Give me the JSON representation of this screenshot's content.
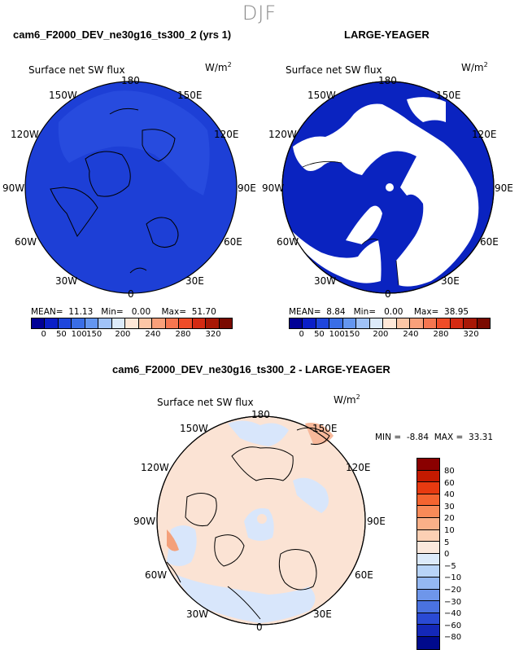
{
  "season": "DJF",
  "panels": [
    {
      "title": "cam6_F2000_DEV_ne30g16_ts300_2 (yrs 1)",
      "field": "Surface net SW flux",
      "units_base": "W/m",
      "units_exp": "2",
      "mean_label": "MEAN=",
      "mean": "11.13",
      "min_label": "Min=",
      "min": "0.00",
      "max_label": "Max=",
      "max": "51.70",
      "lon_labels": [
        "180",
        "150E",
        "120E",
        "90E",
        "60E",
        "30E",
        "0",
        "30W",
        "60W",
        "90W",
        "120W",
        "150W"
      ]
    },
    {
      "title": "LARGE-YEAGER",
      "field": "Surface net SW flux",
      "units_base": "W/m",
      "units_exp": "2",
      "mean_label": "MEAN=",
      "mean": "8.84",
      "min_label": "Min=",
      "min": "0.00",
      "max_label": "Max=",
      "max": "38.95",
      "lon_labels": [
        "180",
        "150E",
        "120E",
        "90E",
        "60E",
        "30E",
        "0",
        "30W",
        "60W",
        "90W",
        "120W",
        "150W"
      ]
    }
  ],
  "abs_colorbar": {
    "colors": [
      "#000096",
      "#0a1fc8",
      "#1e46dc",
      "#3a6ee6",
      "#6496f0",
      "#a0c2f8",
      "#dceafa",
      "#ffe8d8",
      "#fcc6a6",
      "#f9a07a",
      "#f57650",
      "#ef4c28",
      "#d42a12",
      "#a81806",
      "#7a0a00"
    ],
    "labels": [
      "0",
      "50",
      "100",
      "150",
      "200",
      "240",
      "280",
      "320"
    ]
  },
  "diff_panel": {
    "title": "cam6_F2000_DEV_ne30g16_ts300_2 - LARGE-YEAGER",
    "field": "Surface net SW flux",
    "units_base": "W/m",
    "units_exp": "2",
    "min_label": "MIN =",
    "min": "-8.84",
    "max_label": "MAX =",
    "max": "33.31",
    "lon_labels": [
      "180",
      "150E",
      "120E",
      "90E",
      "60E",
      "30E",
      "0",
      "30W",
      "60W",
      "90W",
      "120W",
      "150W"
    ]
  },
  "diff_colorbar": {
    "colors": [
      "#8a0000",
      "#c41a00",
      "#e83a10",
      "#f46430",
      "#f88a58",
      "#fab088",
      "#fcd0b4",
      "#fbe8dc",
      "#dceafa",
      "#b8d4f8",
      "#94b8f2",
      "#6e96ea",
      "#4a72e0",
      "#2a4ad4",
      "#1428b8",
      "#000a8c"
    ],
    "labels": [
      "80",
      "60",
      "40",
      "30",
      "20",
      "10",
      "5",
      "0",
      "−5",
      "−10",
      "−20",
      "−30",
      "−40",
      "−60",
      "−80"
    ]
  },
  "colors": {
    "ocean_model": "#1d3fd6",
    "ocean_obs": "#0a23c0",
    "diff_pos": "#fad6bd",
    "diff_neg": "#d8e6fb",
    "season_text": "#8a8a8a"
  }
}
